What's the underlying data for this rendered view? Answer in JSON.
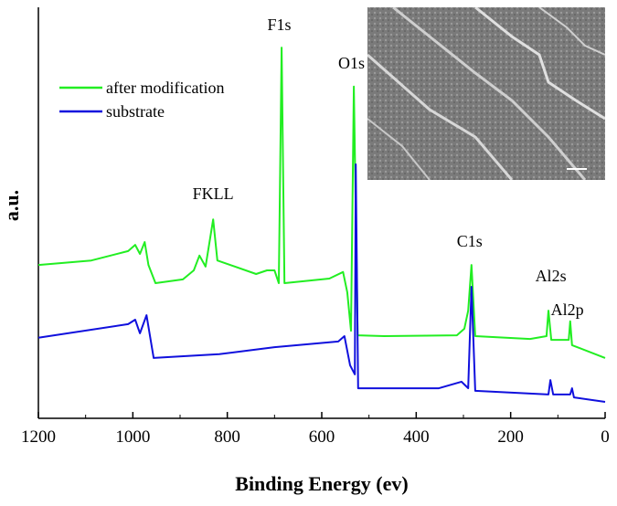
{
  "chart_data": {
    "type": "line",
    "x_label": "Binding Energy (ev)",
    "y_label": "a.u.",
    "xlim": [
      1200,
      0
    ],
    "xticks": [
      1200,
      1000,
      800,
      600,
      400,
      200,
      0
    ],
    "ylim": [
      0,
      100
    ],
    "series": [
      {
        "name": "after modification",
        "color": "#22ee22",
        "x": [
          1200,
          1088,
          1010,
          995,
          985,
          975,
          967,
          952,
          894,
          871,
          859,
          846,
          830,
          821,
          739,
          716,
          700,
          691,
          685,
          679,
          584,
          555,
          546,
          538,
          532,
          524,
          468,
          314,
          298,
          290,
          283,
          275,
          159,
          124,
          120,
          114,
          77,
          74,
          70,
          0
        ],
        "values": [
          37.3,
          38.4,
          40.7,
          42.2,
          40,
          42.9,
          37.3,
          32.9,
          33.8,
          36,
          39.6,
          36.9,
          48.4,
          38.4,
          35.1,
          36,
          36,
          32.9,
          90.2,
          32.9,
          34,
          35.6,
          30.7,
          21.3,
          80.7,
          20.2,
          20,
          20.2,
          21.8,
          26.2,
          37.3,
          20,
          19.3,
          20,
          26.2,
          19.1,
          19.1,
          23.6,
          17.8,
          14.7
        ]
      },
      {
        "name": "substrate",
        "color": "#1010dd",
        "x": [
          1200,
          1010,
          995,
          985,
          971,
          956,
          817,
          700,
          565,
          552,
          540,
          530,
          528,
          523,
          352,
          304,
          290,
          283,
          275,
          120,
          116,
          110,
          74,
          70,
          66,
          0
        ],
        "values": [
          19.6,
          22.9,
          24,
          20.7,
          25.1,
          14.7,
          15.6,
          17.3,
          18.7,
          20,
          12.9,
          10.7,
          61.8,
          7.3,
          7.3,
          8.9,
          7.3,
          32,
          6.7,
          5.8,
          9.3,
          5.8,
          5.8,
          7.3,
          5.1,
          4
        ]
      }
    ],
    "annotations": [
      {
        "text": "F1s",
        "x": 690,
        "y": 94.4
      },
      {
        "text": "O1s",
        "x": 537,
        "y": 85.1
      },
      {
        "text": "FKLL",
        "x": 830,
        "y": 53.3
      },
      {
        "text": "C1s",
        "x": 287,
        "y": 41.8
      },
      {
        "text": "Al2s",
        "x": 115,
        "y": 33.3
      },
      {
        "text": "Al2p",
        "x": 80,
        "y": 25.1
      }
    ]
  }
}
